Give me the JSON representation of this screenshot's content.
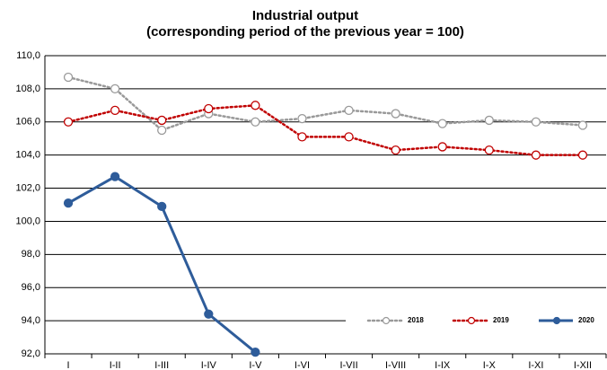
{
  "chart_data": {
    "type": "line",
    "title": "Industrial output",
    "subtitle": "(corresponding period of the previous year = 100)",
    "categories": [
      "I",
      "I-II",
      "I-III",
      "I-IV",
      "I-V",
      "I-VI",
      "I-VII",
      "I-VIII",
      "I-IX",
      "I-X",
      "I-XI",
      "I-XII"
    ],
    "series": [
      {
        "name": "2018",
        "color": "#999999",
        "line": "dotted",
        "marker": "open",
        "values": [
          108.7,
          108.0,
          105.5,
          106.5,
          106.0,
          106.2,
          106.7,
          106.5,
          105.9,
          106.1,
          106.0,
          105.8
        ]
      },
      {
        "name": "2019",
        "color": "#c00000",
        "line": "dotted",
        "marker": "open",
        "values": [
          106.0,
          106.7,
          106.1,
          106.8,
          107.0,
          105.1,
          105.1,
          104.3,
          104.5,
          104.3,
          104.0,
          104.0
        ]
      },
      {
        "name": "2020",
        "color": "#2e5c9a",
        "line": "solid",
        "marker": "filled",
        "values": [
          101.1,
          102.7,
          100.9,
          94.4,
          92.1,
          null,
          null,
          null,
          null,
          null,
          null,
          null
        ]
      }
    ],
    "ylim": [
      92,
      110
    ],
    "yticks": [
      {
        "value": 92,
        "label": "92,0"
      },
      {
        "value": 94,
        "label": "94,0"
      },
      {
        "value": 96,
        "label": "96,0"
      },
      {
        "value": 98,
        "label": "98,0"
      },
      {
        "value": 100,
        "label": "100,0"
      },
      {
        "value": 102,
        "label": "102,0"
      },
      {
        "value": 104,
        "label": "104,0"
      },
      {
        "value": 106,
        "label": "106,0"
      },
      {
        "value": 108,
        "label": "108,0"
      },
      {
        "value": 110,
        "label": "110,0"
      }
    ],
    "grid": true,
    "legend": "bottom-right"
  }
}
